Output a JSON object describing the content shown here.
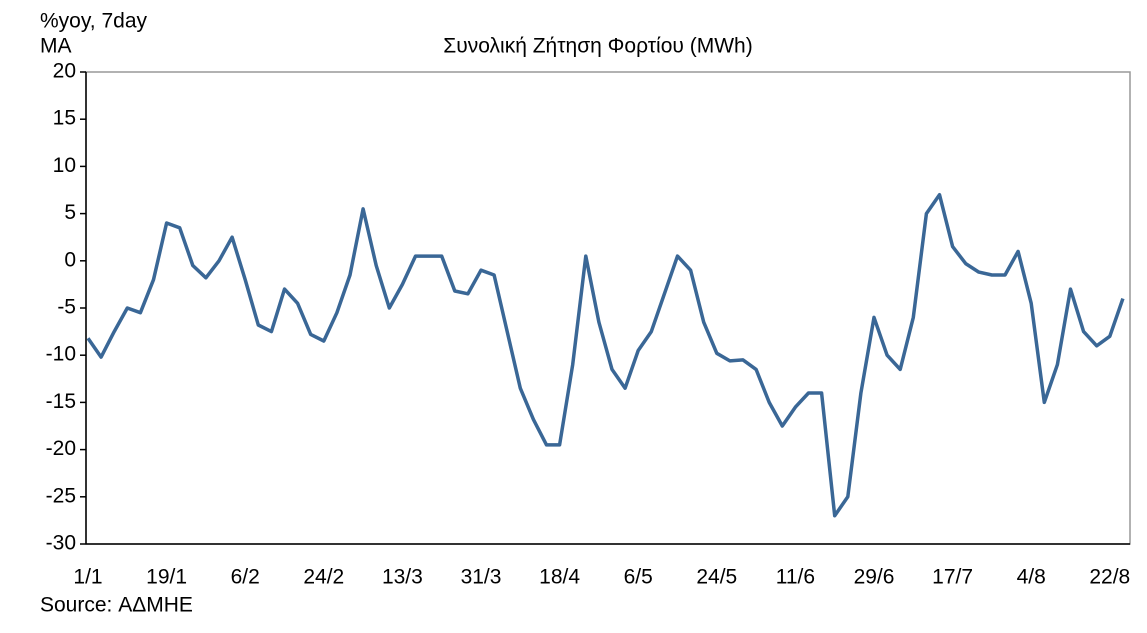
{
  "chart_data": {
    "type": "line",
    "title": "Συνολική Ζήτηση Φορτίου (MWh)",
    "y_label": [
      "%yoy, 7day",
      "MA"
    ],
    "source": "Source: ΑΔΜΗΕ",
    "categories": [
      "1/1",
      null,
      null,
      null,
      null,
      null,
      "19/1",
      null,
      null,
      null,
      null,
      null,
      "6/2",
      null,
      null,
      null,
      null,
      null,
      "24/2",
      null,
      null,
      null,
      null,
      null,
      "13/3",
      null,
      null,
      null,
      null,
      null,
      "31/3",
      null,
      null,
      null,
      null,
      null,
      "18/4",
      null,
      null,
      null,
      null,
      null,
      "6/5",
      null,
      null,
      null,
      null,
      null,
      "24/5",
      null,
      null,
      null,
      null,
      null,
      "11/6",
      null,
      null,
      null,
      null,
      null,
      "29/6",
      null,
      null,
      null,
      null,
      null,
      "17/7",
      null,
      null,
      null,
      null,
      null,
      "4/8",
      null,
      null,
      null,
      null,
      null,
      "22/8",
      null
    ],
    "series": [
      {
        "name": "Συνολική Ζήτηση Φορτίου",
        "color": "#3a6796",
        "values": [
          -8.2,
          -10.2,
          -7.5,
          -5,
          -5.5,
          -2,
          4,
          3.5,
          -0.5,
          -1.8,
          0,
          2.5,
          -2,
          -6.8,
          -7.5,
          -3,
          -4.5,
          -7.8,
          -8.5,
          -5.5,
          -1.5,
          5.5,
          -0.5,
          -5,
          -2.5,
          0.5,
          0.5,
          0.5,
          -3.2,
          -3.5,
          -1,
          -1.5,
          -7.5,
          -13.5,
          -16.8,
          -19.5,
          -19.5,
          -11,
          0.5,
          -6.5,
          -11.5,
          -13.5,
          -9.5,
          -7.5,
          -3.5,
          0.5,
          -1,
          -6.5,
          -9.8,
          -10.6,
          -10.5,
          -11.5,
          -15,
          -17.5,
          -15.5,
          -14,
          -14,
          -27,
          -25,
          -14,
          -6,
          -10,
          -11.5,
          -6,
          5,
          7,
          1.5,
          -0.3,
          -1.2,
          -1.5,
          -1.5,
          1,
          -4.5,
          -15,
          -11,
          -3,
          -7.5,
          -9,
          -8,
          -4
        ]
      }
    ],
    "ylim": [
      -30,
      20
    ],
    "yticks": [
      -30,
      -25,
      -20,
      -15,
      -10,
      -5,
      0,
      5,
      10,
      15,
      20
    ]
  }
}
